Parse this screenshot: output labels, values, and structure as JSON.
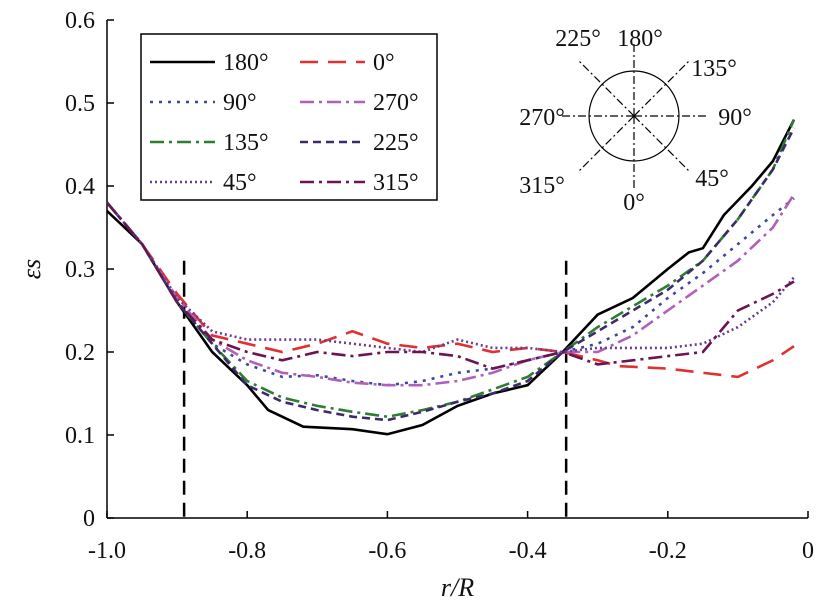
{
  "chart_data": {
    "type": "line",
    "xlabel": "r/R",
    "ylabel": "εs",
    "xlim": [
      -1.0,
      0.0
    ],
    "ylim": [
      0.0,
      0.6
    ],
    "xticks": [
      "-1.0",
      "-0.8",
      "-0.6",
      "-0.4",
      "-0.2",
      "0"
    ],
    "yticks": [
      "0",
      "0.1",
      "0.2",
      "0.3",
      "0.4",
      "0.5",
      "0.6"
    ],
    "grid": false,
    "legend_position": "top-left",
    "reference_lines_x": [
      -0.89,
      -0.345
    ],
    "series": [
      {
        "name": "180°",
        "color": "#000000",
        "dash": "solid",
        "points": [
          [
            -1.0,
            0.37
          ],
          [
            -0.95,
            0.33
          ],
          [
            -0.9,
            0.26
          ],
          [
            -0.85,
            0.2
          ],
          [
            -0.8,
            0.16
          ],
          [
            -0.77,
            0.13
          ],
          [
            -0.72,
            0.11
          ],
          [
            -0.65,
            0.107
          ],
          [
            -0.6,
            0.101
          ],
          [
            -0.55,
            0.112
          ],
          [
            -0.5,
            0.135
          ],
          [
            -0.45,
            0.15
          ],
          [
            -0.4,
            0.16
          ],
          [
            -0.35,
            0.2
          ],
          [
            -0.3,
            0.245
          ],
          [
            -0.25,
            0.265
          ],
          [
            -0.2,
            0.3
          ],
          [
            -0.17,
            0.32
          ],
          [
            -0.15,
            0.325
          ],
          [
            -0.12,
            0.365
          ],
          [
            -0.08,
            0.4
          ],
          [
            -0.05,
            0.43
          ],
          [
            -0.02,
            0.48
          ]
        ]
      },
      {
        "name": "0°",
        "color": "#e03030",
        "dash": "long",
        "points": [
          [
            -1.0,
            0.38
          ],
          [
            -0.95,
            0.33
          ],
          [
            -0.9,
            0.27
          ],
          [
            -0.85,
            0.22
          ],
          [
            -0.8,
            0.21
          ],
          [
            -0.75,
            0.2
          ],
          [
            -0.7,
            0.21
          ],
          [
            -0.65,
            0.225
          ],
          [
            -0.6,
            0.21
          ],
          [
            -0.55,
            0.205
          ],
          [
            -0.5,
            0.21
          ],
          [
            -0.45,
            0.2
          ],
          [
            -0.4,
            0.205
          ],
          [
            -0.35,
            0.2
          ],
          [
            -0.3,
            0.19
          ],
          [
            -0.27,
            0.183
          ],
          [
            -0.2,
            0.18
          ],
          [
            -0.15,
            0.175
          ],
          [
            -0.1,
            0.17
          ],
          [
            -0.05,
            0.19
          ],
          [
            -0.02,
            0.207
          ]
        ]
      },
      {
        "name": "90°",
        "color": "#3a4a9a",
        "dash": "dot",
        "points": [
          [
            -1.0,
            0.38
          ],
          [
            -0.95,
            0.33
          ],
          [
            -0.9,
            0.26
          ],
          [
            -0.85,
            0.21
          ],
          [
            -0.8,
            0.185
          ],
          [
            -0.75,
            0.17
          ],
          [
            -0.7,
            0.172
          ],
          [
            -0.65,
            0.165
          ],
          [
            -0.6,
            0.16
          ],
          [
            -0.55,
            0.165
          ],
          [
            -0.5,
            0.175
          ],
          [
            -0.45,
            0.18
          ],
          [
            -0.4,
            0.19
          ],
          [
            -0.35,
            0.2
          ],
          [
            -0.3,
            0.21
          ],
          [
            -0.25,
            0.23
          ],
          [
            -0.2,
            0.265
          ],
          [
            -0.15,
            0.295
          ],
          [
            -0.1,
            0.33
          ],
          [
            -0.05,
            0.365
          ],
          [
            -0.02,
            0.385
          ]
        ]
      },
      {
        "name": "270°",
        "color": "#b060b8",
        "dash": "dashdot",
        "points": [
          [
            -1.0,
            0.38
          ],
          [
            -0.95,
            0.33
          ],
          [
            -0.9,
            0.265
          ],
          [
            -0.85,
            0.215
          ],
          [
            -0.8,
            0.19
          ],
          [
            -0.75,
            0.175
          ],
          [
            -0.7,
            0.17
          ],
          [
            -0.65,
            0.163
          ],
          [
            -0.6,
            0.16
          ],
          [
            -0.55,
            0.16
          ],
          [
            -0.5,
            0.165
          ],
          [
            -0.45,
            0.175
          ],
          [
            -0.4,
            0.19
          ],
          [
            -0.35,
            0.2
          ],
          [
            -0.3,
            0.2
          ],
          [
            -0.25,
            0.22
          ],
          [
            -0.2,
            0.25
          ],
          [
            -0.15,
            0.28
          ],
          [
            -0.1,
            0.31
          ],
          [
            -0.05,
            0.35
          ],
          [
            -0.02,
            0.39
          ]
        ]
      },
      {
        "name": "135°",
        "color": "#2e7d32",
        "dash": "dashdot",
        "points": [
          [
            -1.0,
            0.38
          ],
          [
            -0.95,
            0.33
          ],
          [
            -0.9,
            0.26
          ],
          [
            -0.85,
            0.21
          ],
          [
            -0.8,
            0.165
          ],
          [
            -0.75,
            0.145
          ],
          [
            -0.7,
            0.135
          ],
          [
            -0.65,
            0.128
          ],
          [
            -0.6,
            0.122
          ],
          [
            -0.55,
            0.13
          ],
          [
            -0.5,
            0.14
          ],
          [
            -0.45,
            0.155
          ],
          [
            -0.4,
            0.17
          ],
          [
            -0.35,
            0.2
          ],
          [
            -0.3,
            0.23
          ],
          [
            -0.25,
            0.255
          ],
          [
            -0.2,
            0.28
          ],
          [
            -0.15,
            0.31
          ],
          [
            -0.1,
            0.36
          ],
          [
            -0.05,
            0.42
          ],
          [
            -0.02,
            0.48
          ]
        ]
      },
      {
        "name": "225°",
        "color": "#3c2a6a",
        "dash": "dash",
        "points": [
          [
            -1.0,
            0.38
          ],
          [
            -0.95,
            0.33
          ],
          [
            -0.9,
            0.26
          ],
          [
            -0.85,
            0.21
          ],
          [
            -0.8,
            0.16
          ],
          [
            -0.75,
            0.14
          ],
          [
            -0.7,
            0.13
          ],
          [
            -0.65,
            0.122
          ],
          [
            -0.6,
            0.118
          ],
          [
            -0.55,
            0.128
          ],
          [
            -0.5,
            0.14
          ],
          [
            -0.45,
            0.15
          ],
          [
            -0.4,
            0.165
          ],
          [
            -0.35,
            0.2
          ],
          [
            -0.3,
            0.225
          ],
          [
            -0.25,
            0.25
          ],
          [
            -0.2,
            0.275
          ],
          [
            -0.15,
            0.31
          ],
          [
            -0.1,
            0.36
          ],
          [
            -0.05,
            0.42
          ],
          [
            -0.02,
            0.47
          ]
        ]
      },
      {
        "name": "45°",
        "color": "#6a3d8f",
        "dash": "finedot",
        "points": [
          [
            -1.0,
            0.38
          ],
          [
            -0.95,
            0.33
          ],
          [
            -0.9,
            0.265
          ],
          [
            -0.85,
            0.225
          ],
          [
            -0.8,
            0.215
          ],
          [
            -0.75,
            0.215
          ],
          [
            -0.7,
            0.215
          ],
          [
            -0.65,
            0.21
          ],
          [
            -0.6,
            0.205
          ],
          [
            -0.55,
            0.2
          ],
          [
            -0.5,
            0.215
          ],
          [
            -0.45,
            0.205
          ],
          [
            -0.4,
            0.205
          ],
          [
            -0.35,
            0.2
          ],
          [
            -0.3,
            0.205
          ],
          [
            -0.25,
            0.205
          ],
          [
            -0.2,
            0.205
          ],
          [
            -0.15,
            0.21
          ],
          [
            -0.1,
            0.23
          ],
          [
            -0.05,
            0.26
          ],
          [
            -0.02,
            0.29
          ]
        ]
      },
      {
        "name": "315°",
        "color": "#6a1450",
        "dash": "dashdot",
        "points": [
          [
            -1.0,
            0.38
          ],
          [
            -0.95,
            0.33
          ],
          [
            -0.9,
            0.26
          ],
          [
            -0.85,
            0.215
          ],
          [
            -0.8,
            0.2
          ],
          [
            -0.75,
            0.19
          ],
          [
            -0.7,
            0.2
          ],
          [
            -0.65,
            0.195
          ],
          [
            -0.6,
            0.2
          ],
          [
            -0.55,
            0.2
          ],
          [
            -0.5,
            0.195
          ],
          [
            -0.45,
            0.18
          ],
          [
            -0.4,
            0.19
          ],
          [
            -0.35,
            0.2
          ],
          [
            -0.3,
            0.185
          ],
          [
            -0.25,
            0.19
          ],
          [
            -0.2,
            0.195
          ],
          [
            -0.15,
            0.2
          ],
          [
            -0.1,
            0.25
          ],
          [
            -0.05,
            0.27
          ],
          [
            -0.02,
            0.285
          ]
        ]
      }
    ],
    "inset_labels": [
      "225°",
      "180°",
      "135°",
      "270°",
      "90°",
      "315°",
      "0°",
      "45°"
    ]
  }
}
